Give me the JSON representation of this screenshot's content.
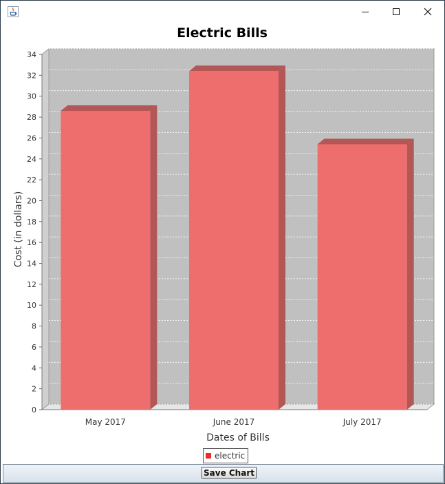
{
  "window": {
    "icon": "java-icon",
    "controls": [
      "minimize-icon",
      "maximize-icon",
      "close-icon"
    ]
  },
  "chart_data": {
    "type": "bar",
    "title": "Electric Bills",
    "xlabel": "Dates of Bills",
    "ylabel": "Cost (in dollars)",
    "categories": [
      "May 2017",
      "June 2017",
      "July 2017"
    ],
    "series": [
      {
        "name": "electric",
        "values": [
          28.6,
          32.4,
          25.4
        ],
        "color": "#ee6e6e"
      }
    ],
    "ylim": [
      0,
      34
    ],
    "yticks": [
      "0",
      "2",
      "4",
      "6",
      "8",
      "10",
      "12",
      "14",
      "16",
      "18",
      "20",
      "22",
      "24",
      "26",
      "28",
      "30",
      "32",
      "34"
    ],
    "grid": true,
    "legend": "bottom-center",
    "plot_background": "#c0c0c0"
  },
  "legend": {
    "label": "electric",
    "color": "#ee2a2a"
  },
  "toolbar": {
    "save_label": "Save Chart"
  }
}
